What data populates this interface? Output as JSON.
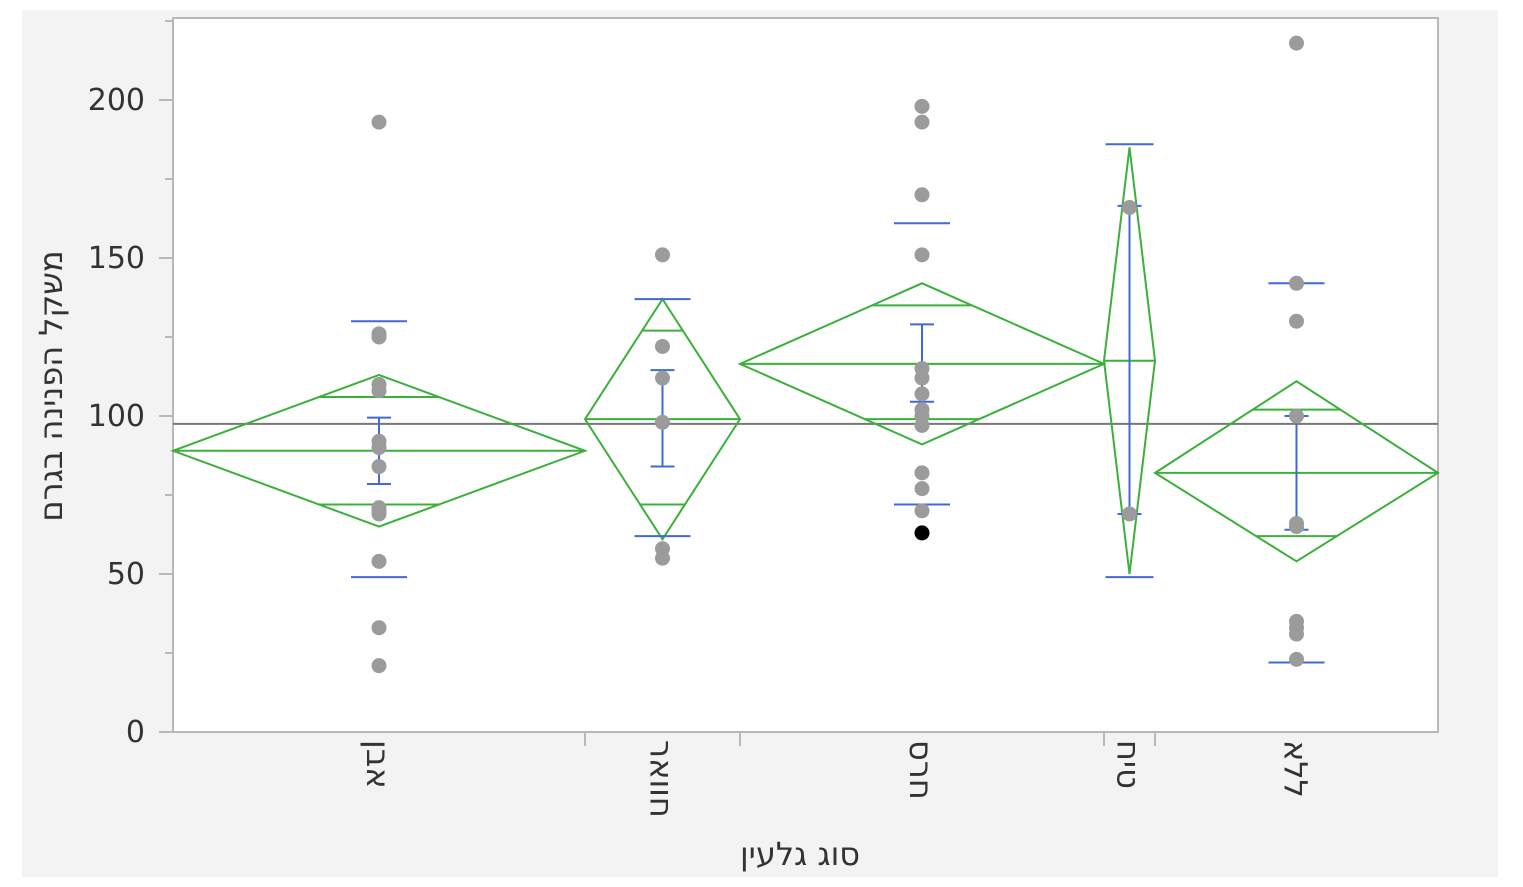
{
  "chart_data": {
    "type": "scatter",
    "subtype": "means-diamonds",
    "title": "",
    "xlabel": "סוג גלעין",
    "ylabel": "משקל הפנינה בגרם",
    "ylim": [
      0,
      225
    ],
    "yticks": [
      0,
      50,
      100,
      150,
      200
    ],
    "grand_mean": 97.5,
    "categories": [
      "אבן",
      "חוואר",
      "חרס",
      "טיח",
      "ללא"
    ],
    "groups": [
      {
        "name": "אבן",
        "mean": 89,
        "ci": [
          65,
          113
        ],
        "overlap": [
          72,
          106
        ],
        "sd_range": [
          49,
          130
        ],
        "se_range": [
          78.5,
          99.5
        ],
        "points": [
          193,
          126,
          125,
          110,
          108,
          92,
          90,
          84,
          71,
          70,
          69,
          54,
          33,
          21
        ],
        "highlighted": []
      },
      {
        "name": "חוואר",
        "mean": 99,
        "ci": [
          61,
          137
        ],
        "overlap": [
          72,
          127
        ],
        "sd_range": [
          62,
          137
        ],
        "se_range": [
          84,
          114.5
        ],
        "points": [
          151,
          122,
          112,
          98,
          58,
          55
        ],
        "highlighted": []
      },
      {
        "name": "חרס",
        "mean": 116.5,
        "ci": [
          91,
          142
        ],
        "overlap": [
          99,
          135
        ],
        "sd_range": [
          72,
          161
        ],
        "se_range": [
          104.5,
          129
        ],
        "points": [
          198,
          193,
          170,
          151,
          115,
          112,
          107,
          102,
          100,
          97,
          82,
          77,
          70,
          63
        ],
        "highlighted": [
          63
        ]
      },
      {
        "name": "טיח",
        "mean": 117.5,
        "ci": [
          50,
          185
        ],
        "overlap": [
          50,
          185
        ],
        "sd_range": [
          49,
          186
        ],
        "se_range": [
          69,
          166.5
        ],
        "points": [
          166,
          69
        ],
        "highlighted": []
      },
      {
        "name": "ללא",
        "mean": 82,
        "ci": [
          54,
          111
        ],
        "overlap": [
          62,
          102
        ],
        "sd_range": [
          22,
          142
        ],
        "se_range": [
          64,
          100
        ],
        "points": [
          218,
          142,
          130,
          100,
          66,
          65,
          35,
          33,
          31,
          23
        ],
        "highlighted": []
      }
    ],
    "colors": {
      "diamond": "#3bb03b",
      "errorbar": "#4169d9",
      "point": "#9b9b9b",
      "highlight": "#000000",
      "grand_mean_line": "#777777",
      "axis": "#b8b8b8"
    }
  }
}
